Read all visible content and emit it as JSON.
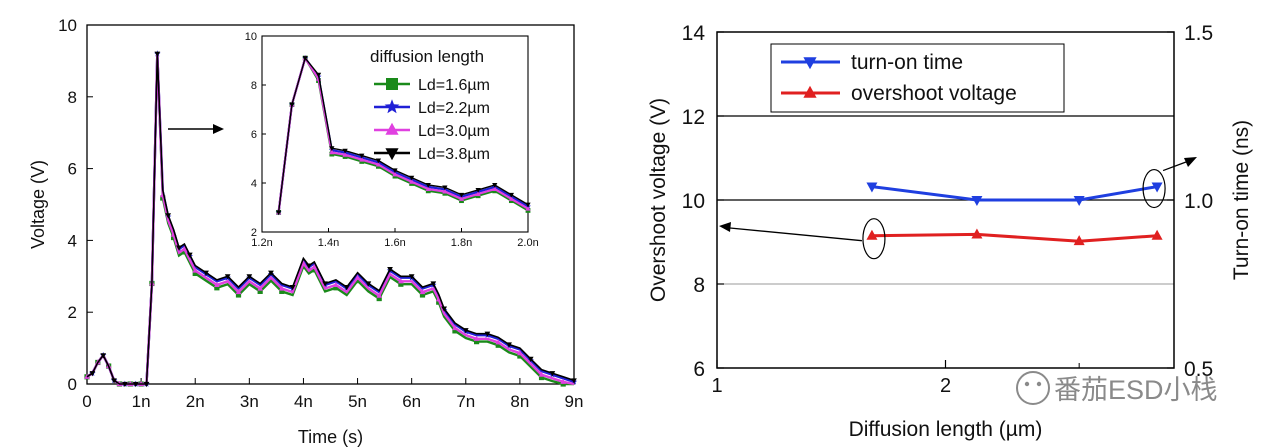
{
  "chart_data": [
    {
      "type": "line",
      "xlabel": "Time (s)",
      "ylabel": "Voltage (V)",
      "xlim": [
        0,
        9
      ],
      "ylim": [
        0,
        10
      ],
      "x_ticks": [
        "0",
        "1n",
        "2n",
        "3n",
        "4n",
        "5n",
        "6n",
        "7n",
        "8n",
        "9n"
      ],
      "y_ticks": [
        "0",
        "2",
        "4",
        "6",
        "8",
        "10"
      ],
      "series": [
        {
          "name": "Ld=1.6µm",
          "color": "#1a8a1a",
          "marker": "square"
        },
        {
          "name": "Ld=2.2µm",
          "color": "#1f1fd6",
          "marker": "star"
        },
        {
          "name": "Ld=3.0µm",
          "color": "#e040e0",
          "marker": "triangle-up"
        },
        {
          "name": "Ld=3.8µm",
          "color": "#000000",
          "marker": "triangle-down"
        }
      ],
      "x": [
        0,
        0.1,
        0.2,
        0.3,
        0.4,
        0.5,
        0.6,
        0.7,
        0.8,
        0.9,
        1.0,
        1.1,
        1.2,
        1.3,
        1.4,
        1.5,
        1.6,
        1.7,
        1.8,
        1.9,
        2.0,
        2.2,
        2.4,
        2.6,
        2.8,
        3.0,
        3.2,
        3.4,
        3.6,
        3.8,
        4.0,
        4.1,
        4.2,
        4.4,
        4.6,
        4.8,
        5.0,
        5.2,
        5.4,
        5.6,
        5.8,
        6.0,
        6.2,
        6.4,
        6.5,
        6.6,
        6.8,
        7.0,
        7.2,
        7.4,
        7.6,
        7.8,
        8.0,
        8.2,
        8.4,
        8.6,
        8.8,
        9.0
      ],
      "y": [
        0.2,
        0.3,
        0.6,
        0.8,
        0.5,
        0.1,
        0.0,
        0.0,
        0.0,
        0.0,
        0.0,
        0.0,
        2.8,
        9.2,
        5.3,
        4.6,
        4.2,
        3.7,
        3.8,
        3.5,
        3.2,
        3.0,
        2.8,
        2.9,
        2.6,
        2.9,
        2.7,
        3.0,
        2.7,
        2.6,
        3.4,
        3.2,
        3.3,
        2.7,
        2.8,
        2.6,
        3.0,
        2.7,
        2.5,
        3.1,
        2.9,
        2.9,
        2.6,
        2.7,
        2.4,
        2.0,
        1.6,
        1.4,
        1.3,
        1.3,
        1.2,
        1.0,
        0.9,
        0.6,
        0.3,
        0.2,
        0.1,
        0.0
      ],
      "inset": {
        "title": "diffusion length",
        "xlim": [
          1.2,
          2.0
        ],
        "ylim": [
          2,
          10
        ],
        "x_ticks": [
          "1.2n",
          "1.4n",
          "1.6n",
          "1.8n",
          "2.0n"
        ],
        "y_ticks": [
          "2",
          "4",
          "6",
          "8",
          "10"
        ],
        "x": [
          1.25,
          1.29,
          1.33,
          1.37,
          1.41,
          1.45,
          1.5,
          1.55,
          1.6,
          1.65,
          1.7,
          1.75,
          1.8,
          1.85,
          1.9,
          1.95,
          2.0
        ],
        "y": [
          2.8,
          7.2,
          9.1,
          8.3,
          5.3,
          5.2,
          5.0,
          4.8,
          4.4,
          4.1,
          3.8,
          3.7,
          3.4,
          3.6,
          3.8,
          3.4,
          3.0
        ]
      }
    },
    {
      "type": "line",
      "xlabel": "Diffusion length (µm)",
      "ylabel": "Overshoot voltage (V)",
      "y2label": "Turn-on time (ns)",
      "xscale": "log",
      "xlim": [
        1,
        4
      ],
      "ylim": [
        6,
        14
      ],
      "y2lim": [
        0.5,
        1.5
      ],
      "x_ticks": [
        "1",
        "2"
      ],
      "y_ticks": [
        "6",
        "8",
        "10",
        "12",
        "14"
      ],
      "y2_ticks": [
        "0.5",
        "1.0",
        "1.5"
      ],
      "series": [
        {
          "name": "turn-on time",
          "color": "#1f3fe0",
          "marker": "triangle-down",
          "axis": "right",
          "x": [
            1.6,
            2.2,
            3.0,
            3.8
          ],
          "values": [
            1.04,
            1.0,
            1.0,
            1.04
          ]
        },
        {
          "name": "overshoot voltage",
          "color": "#e02020",
          "marker": "triangle-up",
          "axis": "left",
          "x": [
            1.6,
            2.2,
            3.0,
            3.8
          ],
          "values": [
            9.15,
            9.18,
            9.02,
            9.15
          ]
        }
      ]
    }
  ],
  "watermark": {
    "text": "番茄ESD小栈"
  }
}
